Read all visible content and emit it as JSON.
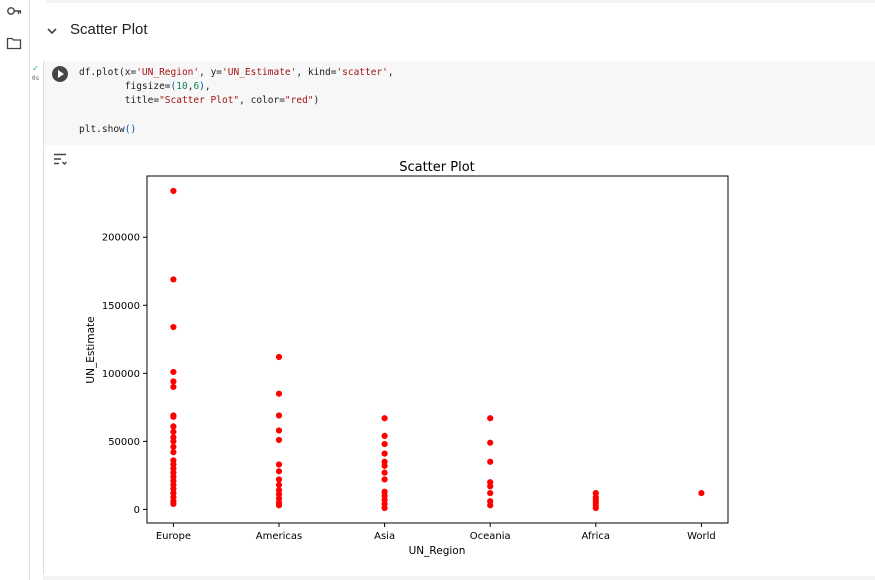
{
  "section": {
    "title": "Scatter Plot"
  },
  "cell": {
    "status_check": "✓",
    "exec_time": "0s",
    "code": {
      "line1": [
        "df.plot(x=",
        "'UN_Region'",
        ", y=",
        "'UN_Estimate'",
        ", kind=",
        "'scatter'",
        ","
      ],
      "line2": [
        "        figsize=",
        "(",
        "10",
        ",",
        "6",
        ")",
        ","
      ],
      "line3": [
        "        title=",
        "\"Scatter Plot\"",
        ", color=",
        "\"red\"",
        ")"
      ],
      "line5": [
        "plt.show",
        "()"
      ]
    }
  },
  "icons": {
    "rail_top": "key-icon",
    "rail_folder": "folder-icon",
    "section_toggle": "chevron-down-icon",
    "run": "play-icon",
    "output_menu": "output-options-icon"
  },
  "chart_data": {
    "type": "scatter",
    "title": "Scatter Plot",
    "xlabel": "UN_Region",
    "ylabel": "UN_Estimate",
    "categories": [
      "Europe",
      "Americas",
      "Asia",
      "Oceania",
      "Africa",
      "World"
    ],
    "ylim": [
      -10000,
      245000
    ],
    "yticks": [
      0,
      50000,
      100000,
      150000,
      200000
    ],
    "color": "#ff0000",
    "points": [
      {
        "x": "Europe",
        "y": 234000
      },
      {
        "x": "Europe",
        "y": 169000
      },
      {
        "x": "Europe",
        "y": 134000
      },
      {
        "x": "Europe",
        "y": 101000
      },
      {
        "x": "Europe",
        "y": 94000
      },
      {
        "x": "Europe",
        "y": 90000
      },
      {
        "x": "Europe",
        "y": 69000
      },
      {
        "x": "Europe",
        "y": 68000
      },
      {
        "x": "Europe",
        "y": 61000
      },
      {
        "x": "Europe",
        "y": 57000
      },
      {
        "x": "Europe",
        "y": 53000
      },
      {
        "x": "Europe",
        "y": 50000
      },
      {
        "x": "Europe",
        "y": 46000
      },
      {
        "x": "Europe",
        "y": 42000
      },
      {
        "x": "Europe",
        "y": 36000
      },
      {
        "x": "Europe",
        "y": 33000
      },
      {
        "x": "Europe",
        "y": 30000
      },
      {
        "x": "Europe",
        "y": 27000
      },
      {
        "x": "Europe",
        "y": 24000
      },
      {
        "x": "Europe",
        "y": 21000
      },
      {
        "x": "Europe",
        "y": 18000
      },
      {
        "x": "Europe",
        "y": 15000
      },
      {
        "x": "Europe",
        "y": 12000
      },
      {
        "x": "Europe",
        "y": 9000
      },
      {
        "x": "Europe",
        "y": 6000
      },
      {
        "x": "Europe",
        "y": 4000
      },
      {
        "x": "Americas",
        "y": 112000
      },
      {
        "x": "Americas",
        "y": 85000
      },
      {
        "x": "Americas",
        "y": 69000
      },
      {
        "x": "Americas",
        "y": 58000
      },
      {
        "x": "Americas",
        "y": 51000
      },
      {
        "x": "Americas",
        "y": 33000
      },
      {
        "x": "Americas",
        "y": 28000
      },
      {
        "x": "Americas",
        "y": 22000
      },
      {
        "x": "Americas",
        "y": 18000
      },
      {
        "x": "Americas",
        "y": 14000
      },
      {
        "x": "Americas",
        "y": 11000
      },
      {
        "x": "Americas",
        "y": 8000
      },
      {
        "x": "Americas",
        "y": 5000
      },
      {
        "x": "Americas",
        "y": 3000
      },
      {
        "x": "Asia",
        "y": 67000
      },
      {
        "x": "Asia",
        "y": 54000
      },
      {
        "x": "Asia",
        "y": 48000
      },
      {
        "x": "Asia",
        "y": 41000
      },
      {
        "x": "Asia",
        "y": 35000
      },
      {
        "x": "Asia",
        "y": 32000
      },
      {
        "x": "Asia",
        "y": 27000
      },
      {
        "x": "Asia",
        "y": 22000
      },
      {
        "x": "Asia",
        "y": 13000
      },
      {
        "x": "Asia",
        "y": 10000
      },
      {
        "x": "Asia",
        "y": 7000
      },
      {
        "x": "Asia",
        "y": 4000
      },
      {
        "x": "Asia",
        "y": 1000
      },
      {
        "x": "Oceania",
        "y": 67000
      },
      {
        "x": "Oceania",
        "y": 49000
      },
      {
        "x": "Oceania",
        "y": 35000
      },
      {
        "x": "Oceania",
        "y": 20000
      },
      {
        "x": "Oceania",
        "y": 17000
      },
      {
        "x": "Oceania",
        "y": 12000
      },
      {
        "x": "Oceania",
        "y": 6000
      },
      {
        "x": "Oceania",
        "y": 3000
      },
      {
        "x": "Africa",
        "y": 12000
      },
      {
        "x": "Africa",
        "y": 9000
      },
      {
        "x": "Africa",
        "y": 7000
      },
      {
        "x": "Africa",
        "y": 5000
      },
      {
        "x": "Africa",
        "y": 3000
      },
      {
        "x": "Africa",
        "y": 1000
      },
      {
        "x": "World",
        "y": 12000
      }
    ]
  }
}
